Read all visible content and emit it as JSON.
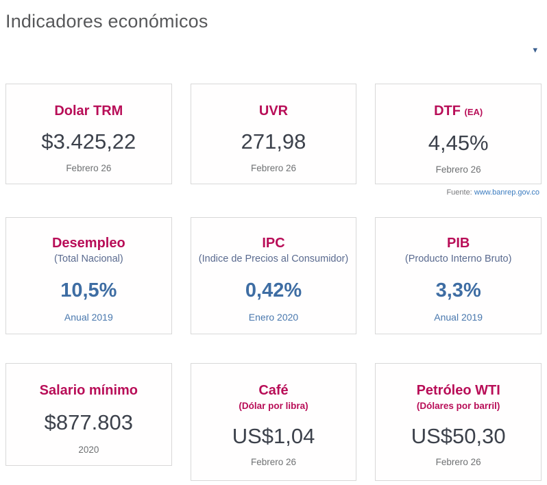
{
  "page": {
    "title": "Indicadores económicos"
  },
  "filter": {
    "dropdown_icon": "▾"
  },
  "source": {
    "label": "Fuente:",
    "link": "www.banrep.gov.co"
  },
  "colors": {
    "accent_magenta": "#b80d57",
    "value_dark": "#3c414b",
    "value_blue": "#3e6da3",
    "subtitle_slate": "#5a6a8f",
    "date_gray": "#6e7072",
    "date_blue": "#4877ad",
    "title_gray": "#57585a",
    "card_border": "#d8d8d8",
    "link_blue": "#3a7bbf",
    "caret_blue": "#3a5f8f"
  },
  "rows": [
    {
      "cards": [
        {
          "title": "Dolar TRM",
          "value": "$3.425,22",
          "period": "Febrero 26"
        },
        {
          "title": "UVR",
          "value": "271,98",
          "period": "Febrero 26"
        },
        {
          "title": "DTF",
          "title_suffix": "(EA)",
          "value": "4,45%",
          "period": "Febrero 26"
        }
      ]
    },
    {
      "cards": [
        {
          "title": "Desempleo",
          "subtitle": "(Total Nacional)",
          "value": "10,5%",
          "period": "Anual 2019"
        },
        {
          "title": "IPC",
          "subtitle": "(Indice de Precios al Consumidor)",
          "value": "0,42%",
          "period": "Enero 2020"
        },
        {
          "title": "PIB",
          "subtitle": "(Producto Interno Bruto)",
          "value": "3,3%",
          "period": "Anual 2019"
        }
      ]
    },
    {
      "cards": [
        {
          "title": "Salario mínimo",
          "value": "$877.803",
          "period": "2020"
        },
        {
          "title": "Café",
          "subtitle": "(Dólar por libra)",
          "value": "US$1,04",
          "period": "Febrero 26"
        },
        {
          "title": "Petróleo WTI",
          "subtitle": "(Dólares por barril)",
          "value": "US$50,30",
          "period": "Febrero 26"
        }
      ]
    }
  ]
}
